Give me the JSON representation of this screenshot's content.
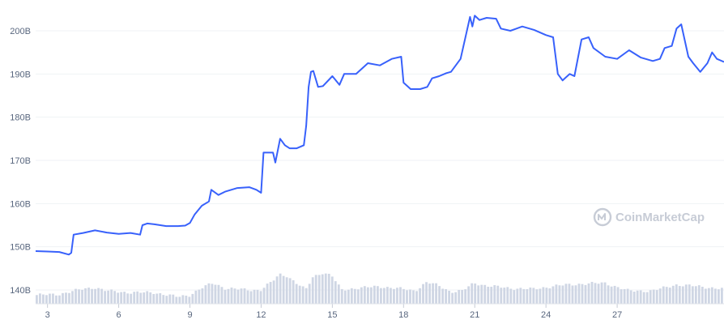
{
  "chart_data": {
    "type": "line",
    "title": "",
    "xlabel": "",
    "ylabel": "",
    "y_unit_suffix": "B",
    "ylim": [
      138,
      204
    ],
    "yticks": [
      140,
      150,
      160,
      170,
      180,
      190,
      200
    ],
    "ytick_labels": [
      "140B",
      "150B",
      "160B",
      "170B",
      "180B",
      "190B",
      "200B"
    ],
    "xlim": [
      2.5,
      31.5
    ],
    "xticks": [
      3,
      6,
      9,
      12,
      15,
      18,
      21,
      24,
      27
    ],
    "xtick_labels": [
      "3",
      "6",
      "9",
      "12",
      "15",
      "18",
      "21",
      "24",
      "27"
    ],
    "grid": true,
    "series": [
      {
        "color": "#3861fb",
        "x": [
          2.5,
          3.0,
          3.5,
          3.9,
          4.0,
          4.1,
          4.5,
          5.0,
          5.5,
          6.0,
          6.5,
          6.9,
          7.0,
          7.2,
          7.5,
          8.0,
          8.5,
          8.8,
          9.0,
          9.2,
          9.5,
          9.8,
          9.9,
          10.2,
          10.5,
          11.0,
          11.5,
          11.8,
          12.0,
          12.1,
          12.5,
          12.6,
          12.8,
          13.0,
          13.2,
          13.5,
          13.8,
          13.9,
          14.0,
          14.1,
          14.2,
          14.4,
          14.6,
          15.0,
          15.3,
          15.5,
          16.0,
          16.5,
          17.0,
          17.5,
          17.9,
          18.0,
          18.3,
          18.7,
          19.0,
          19.2,
          19.5,
          19.8,
          20.0,
          20.4,
          20.8,
          20.9,
          21.0,
          21.2,
          21.5,
          21.9,
          22.1,
          22.5,
          23.0,
          23.5,
          24.0,
          24.3,
          24.5,
          24.7,
          25.0,
          25.2,
          25.5,
          25.8,
          26.0,
          26.5,
          27.0,
          27.5,
          28.0,
          28.5,
          28.8,
          29.0,
          29.3,
          29.5,
          29.7,
          30.0,
          30.2,
          30.5,
          30.8,
          31.0,
          31.2,
          31.5
        ],
        "values": [
          149.0,
          148.9,
          148.8,
          148.2,
          148.6,
          152.8,
          153.2,
          153.8,
          153.3,
          153.0,
          153.2,
          152.8,
          155.0,
          155.4,
          155.2,
          154.8,
          154.8,
          154.9,
          155.5,
          157.5,
          159.5,
          160.5,
          163.2,
          162.0,
          162.8,
          163.6,
          163.8,
          163.2,
          162.5,
          171.8,
          171.8,
          169.5,
          175.0,
          173.5,
          172.8,
          172.8,
          173.5,
          178.0,
          187.0,
          190.5,
          190.7,
          187.0,
          187.2,
          189.5,
          187.5,
          190.0,
          190.0,
          192.5,
          192.0,
          193.5,
          194.0,
          188.0,
          186.5,
          186.5,
          187.0,
          189.0,
          189.5,
          190.2,
          190.5,
          193.5,
          203.2,
          201.0,
          203.5,
          202.5,
          203.0,
          202.8,
          200.5,
          200.0,
          201.0,
          200.2,
          199.0,
          198.5,
          190.0,
          188.5,
          190.0,
          189.5,
          198.0,
          198.5,
          196.0,
          194.0,
          193.5,
          195.5,
          193.8,
          193.0,
          193.5,
          196.0,
          196.5,
          200.5,
          201.5,
          194.0,
          192.5,
          190.5,
          192.5,
          195.0,
          193.5,
          192.8
        ]
      }
    ],
    "volume": {
      "x": [
        2.5,
        3.5,
        4.5,
        5.0,
        5.5,
        6.5,
        7.5,
        8.5,
        9.0,
        9.5,
        10.0,
        10.5,
        11.5,
        12.0,
        12.5,
        12.8,
        13.1,
        13.5,
        13.9,
        14.2,
        14.6,
        15.0,
        15.4,
        16.0,
        17.0,
        18.0,
        18.5,
        19.0,
        19.5,
        20.0,
        20.5,
        21.0,
        21.5,
        22.5,
        23.5,
        24.5,
        25.5,
        26.5,
        27.5,
        28.5,
        29.5,
        30.5,
        31.5
      ],
      "values": [
        2.0,
        2.2,
        3.4,
        3.8,
        3.0,
        2.6,
        2.6,
        1.6,
        2.0,
        3.6,
        4.8,
        3.6,
        3.2,
        3.2,
        5.2,
        6.8,
        6.5,
        4.8,
        3.2,
        6.2,
        7.2,
        6.5,
        3.2,
        3.6,
        4.0,
        3.4,
        3.0,
        5.0,
        4.2,
        2.8,
        3.0,
        4.8,
        4.2,
        3.6,
        3.4,
        4.2,
        4.6,
        4.8,
        3.0,
        3.0,
        4.4,
        4.0,
        3.4
      ]
    }
  },
  "watermark": {
    "text": "CoinMarketCap",
    "icon": "coinmarketcap-logo-icon",
    "color": "#c7ccd6"
  }
}
